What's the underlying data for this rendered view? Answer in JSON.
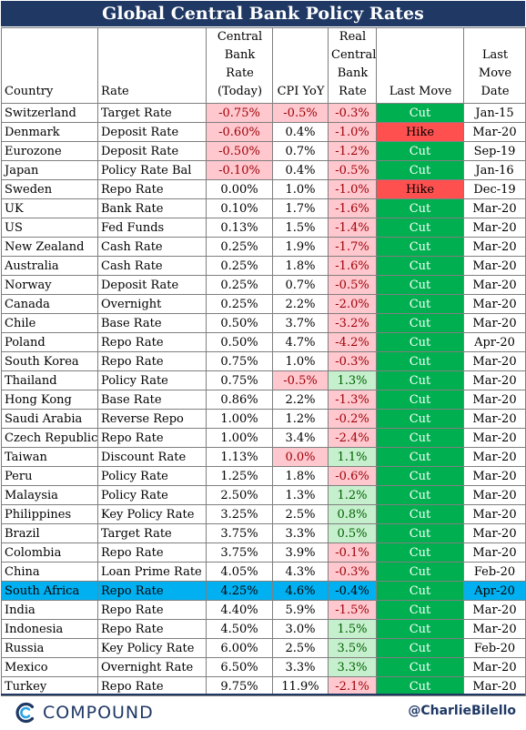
{
  "title": "Global Central Bank Policy Rates",
  "headers": {
    "country": "Country",
    "rate": "Rate",
    "cb_rate": [
      "Central",
      "Bank Rate",
      "(Today)"
    ],
    "cpi": "CPI YoY",
    "real": [
      "Real",
      "Central",
      "Bank",
      "Rate"
    ],
    "last_move": "Last Move",
    "last_move_date": [
      "Last",
      "Move",
      "Date"
    ]
  },
  "rows": [
    {
      "country": "Switzerland",
      "rate": "Target Rate",
      "cb": "-0.75%",
      "cpi": "-0.5%",
      "real": "-0.3%",
      "move": "Cut",
      "date": "Jan-15"
    },
    {
      "country": "Denmark",
      "rate": "Deposit Rate",
      "cb": "-0.60%",
      "cpi": "0.4%",
      "real": "-1.0%",
      "move": "Hike",
      "date": "Mar-20"
    },
    {
      "country": "Eurozone",
      "rate": "Deposit Rate",
      "cb": "-0.50%",
      "cpi": "0.7%",
      "real": "-1.2%",
      "move": "Cut",
      "date": "Sep-19"
    },
    {
      "country": "Japan",
      "rate": "Policy Rate Bal",
      "cb": "-0.10%",
      "cpi": "0.4%",
      "real": "-0.5%",
      "move": "Cut",
      "date": "Jan-16"
    },
    {
      "country": "Sweden",
      "rate": "Repo Rate",
      "cb": "0.00%",
      "cpi": "1.0%",
      "real": "-1.0%",
      "move": "Hike",
      "date": "Dec-19"
    },
    {
      "country": "UK",
      "rate": "Bank Rate",
      "cb": "0.10%",
      "cpi": "1.7%",
      "real": "-1.6%",
      "move": "Cut",
      "date": "Mar-20"
    },
    {
      "country": "US",
      "rate": "Fed Funds",
      "cb": "0.13%",
      "cpi": "1.5%",
      "real": "-1.4%",
      "move": "Cut",
      "date": "Mar-20"
    },
    {
      "country": "New Zealand",
      "rate": "Cash Rate",
      "cb": "0.25%",
      "cpi": "1.9%",
      "real": "-1.7%",
      "move": "Cut",
      "date": "Mar-20"
    },
    {
      "country": "Australia",
      "rate": "Cash Rate",
      "cb": "0.25%",
      "cpi": "1.8%",
      "real": "-1.6%",
      "move": "Cut",
      "date": "Mar-20"
    },
    {
      "country": "Norway",
      "rate": "Deposit Rate",
      "cb": "0.25%",
      "cpi": "0.7%",
      "real": "-0.5%",
      "move": "Cut",
      "date": "Mar-20"
    },
    {
      "country": "Canada",
      "rate": "Overnight",
      "cb": "0.25%",
      "cpi": "2.2%",
      "real": "-2.0%",
      "move": "Cut",
      "date": "Mar-20"
    },
    {
      "country": "Chile",
      "rate": "Base Rate",
      "cb": "0.50%",
      "cpi": "3.7%",
      "real": "-3.2%",
      "move": "Cut",
      "date": "Mar-20"
    },
    {
      "country": "Poland",
      "rate": "Repo Rate",
      "cb": "0.50%",
      "cpi": "4.7%",
      "real": "-4.2%",
      "move": "Cut",
      "date": "Apr-20"
    },
    {
      "country": "South Korea",
      "rate": "Repo Rate",
      "cb": "0.75%",
      "cpi": "1.0%",
      "real": "-0.3%",
      "move": "Cut",
      "date": "Mar-20"
    },
    {
      "country": "Thailand",
      "rate": "Policy Rate",
      "cb": "0.75%",
      "cpi": "-0.5%",
      "real": "1.3%",
      "move": "Cut",
      "date": "Mar-20"
    },
    {
      "country": "Hong Kong",
      "rate": "Base Rate",
      "cb": "0.86%",
      "cpi": "2.2%",
      "real": "-1.3%",
      "move": "Cut",
      "date": "Mar-20"
    },
    {
      "country": "Saudi Arabia",
      "rate": "Reverse Repo",
      "cb": "1.00%",
      "cpi": "1.2%",
      "real": "-0.2%",
      "move": "Cut",
      "date": "Mar-20"
    },
    {
      "country": "Czech Republic",
      "rate": "Repo Rate",
      "cb": "1.00%",
      "cpi": "3.4%",
      "real": "-2.4%",
      "move": "Cut",
      "date": "Mar-20"
    },
    {
      "country": "Taiwan",
      "rate": "Discount Rate",
      "cb": "1.13%",
      "cpi": "0.0%",
      "real": "1.1%",
      "move": "Cut",
      "date": "Mar-20"
    },
    {
      "country": "Peru",
      "rate": "Policy Rate",
      "cb": "1.25%",
      "cpi": "1.8%",
      "real": "-0.6%",
      "move": "Cut",
      "date": "Mar-20"
    },
    {
      "country": "Malaysia",
      "rate": "Policy Rate",
      "cb": "2.50%",
      "cpi": "1.3%",
      "real": "1.2%",
      "move": "Cut",
      "date": "Mar-20"
    },
    {
      "country": "Philippines",
      "rate": "Key Policy Rate",
      "cb": "3.25%",
      "cpi": "2.5%",
      "real": "0.8%",
      "move": "Cut",
      "date": "Mar-20"
    },
    {
      "country": "Brazil",
      "rate": "Target Rate",
      "cb": "3.75%",
      "cpi": "3.3%",
      "real": "0.5%",
      "move": "Cut",
      "date": "Mar-20"
    },
    {
      "country": "Colombia",
      "rate": "Repo Rate",
      "cb": "3.75%",
      "cpi": "3.9%",
      "real": "-0.1%",
      "move": "Cut",
      "date": "Mar-20"
    },
    {
      "country": "China",
      "rate": "Loan Prime Rate",
      "cb": "4.05%",
      "cpi": "4.3%",
      "real": "-0.3%",
      "move": "Cut",
      "date": "Feb-20"
    },
    {
      "country": "South Africa",
      "rate": "Repo Rate",
      "cb": "4.25%",
      "cpi": "4.6%",
      "real": "-0.4%",
      "move": "Cut",
      "date": "Apr-20",
      "highlight": true
    },
    {
      "country": "India",
      "rate": "Repo Rate",
      "cb": "4.40%",
      "cpi": "5.9%",
      "real": "-1.5%",
      "move": "Cut",
      "date": "Mar-20"
    },
    {
      "country": "Indonesia",
      "rate": "Repo Rate",
      "cb": "4.50%",
      "cpi": "3.0%",
      "real": "1.5%",
      "move": "Cut",
      "date": "Mar-20"
    },
    {
      "country": "Russia",
      "rate": "Key Policy Rate",
      "cb": "6.00%",
      "cpi": "2.5%",
      "real": "3.5%",
      "move": "Cut",
      "date": "Feb-20"
    },
    {
      "country": "Mexico",
      "rate": "Overnight Rate",
      "cb": "6.50%",
      "cpi": "3.3%",
      "real": "3.3%",
      "move": "Cut",
      "date": "Mar-20"
    },
    {
      "country": "Turkey",
      "rate": "Repo Rate",
      "cb": "9.75%",
      "cpi": "11.9%",
      "real": "-2.1%",
      "move": "Cut",
      "date": "Mar-20"
    }
  ],
  "colors": {
    "title_bg": "#1f3864",
    "negative_fill": "#ffc7ce",
    "positive_fill": "#c6efce",
    "cut_fill": "#00b050",
    "hike_fill": "#ff5050",
    "highlight_row": "#00b0f0"
  },
  "footer": {
    "logo_icon": "compound-logo-icon",
    "logo_text": "COMPOUND",
    "handle": "@CharlieBilello"
  }
}
